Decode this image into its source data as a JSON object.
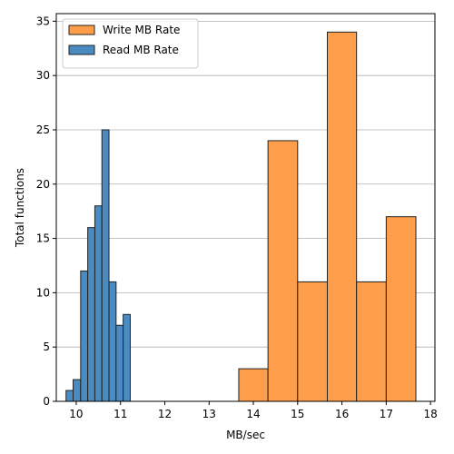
{
  "chart_data": {
    "type": "bar",
    "subtype": "histogram",
    "title": "",
    "xlabel": "MB/sec",
    "ylabel": "Total functions",
    "xlim": [
      9.55,
      18.1
    ],
    "ylim": [
      0,
      35.7
    ],
    "xticks": [
      10,
      11,
      12,
      13,
      14,
      15,
      16,
      17,
      18
    ],
    "yticks": [
      0,
      5,
      10,
      15,
      20,
      25,
      30,
      35
    ],
    "grid": "y",
    "legend_position": "upper-left",
    "series": [
      {
        "name": "Write MB Rate",
        "color": "#ff9e4a",
        "bins": [
          {
            "x0": 13.67,
            "x1": 14.33,
            "count": 3
          },
          {
            "x0": 14.33,
            "x1": 15.0,
            "count": 24
          },
          {
            "x0": 15.0,
            "x1": 15.67,
            "count": 11
          },
          {
            "x0": 15.67,
            "x1": 16.33,
            "count": 34
          },
          {
            "x0": 16.33,
            "x1": 17.0,
            "count": 11
          },
          {
            "x0": 17.0,
            "x1": 17.67,
            "count": 17
          }
        ]
      },
      {
        "name": "Read MB Rate",
        "color": "#4a8cc2",
        "bins": [
          {
            "x0": 9.77,
            "x1": 9.93,
            "count": 1
          },
          {
            "x0": 9.93,
            "x1": 10.1,
            "count": 2
          },
          {
            "x0": 10.1,
            "x1": 10.26,
            "count": 12
          },
          {
            "x0": 10.26,
            "x1": 10.42,
            "count": 16
          },
          {
            "x0": 10.42,
            "x1": 10.58,
            "count": 18
          },
          {
            "x0": 10.58,
            "x1": 10.74,
            "count": 25
          },
          {
            "x0": 10.74,
            "x1": 10.9,
            "count": 11
          },
          {
            "x0": 10.9,
            "x1": 11.06,
            "count": 7
          },
          {
            "x0": 11.06,
            "x1": 11.22,
            "count": 8
          }
        ]
      }
    ],
    "legend_order": [
      "Write MB Rate",
      "Read MB Rate"
    ]
  }
}
